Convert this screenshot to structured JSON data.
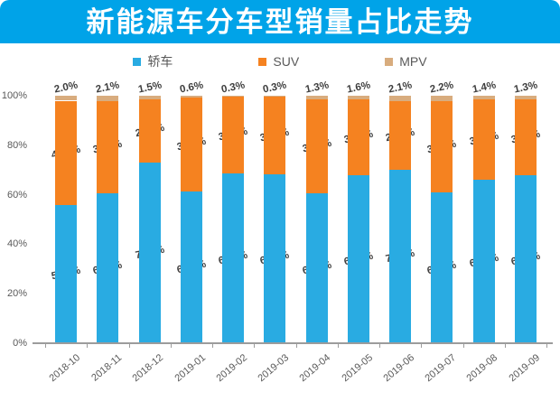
{
  "header": {
    "title": "新能源车分车型销量占比走势"
  },
  "legend": [
    {
      "label": "轿车",
      "color": "#29ABE2"
    },
    {
      "label": "SUV",
      "color": "#F58220"
    },
    {
      "label": "MPV",
      "color": "#D8AC7E"
    }
  ],
  "chart_data": {
    "type": "bar",
    "stacked": true,
    "title": "新能源车分车型销量占比走势",
    "categories": [
      "2018-10",
      "2018-11",
      "2018-12",
      "2019-01",
      "2019-02",
      "2019-03",
      "2019-04",
      "2019-05",
      "2019-06",
      "2019-07",
      "2019-08",
      "2019-09"
    ],
    "series": [
      {
        "name": "轿车",
        "color": "#29ABE2",
        "values": [
          55.9,
          60.5,
          73.0,
          61.5,
          68.6,
          68.3,
          60.5,
          67.8,
          70.1,
          60.9,
          66.2,
          67.9
        ]
      },
      {
        "name": "SUV",
        "color": "#F58220",
        "values": [
          42.1,
          37.4,
          25.6,
          37.9,
          31.2,
          31.5,
          38.2,
          30.6,
          27.7,
          36.9,
          32.4,
          30.8
        ]
      },
      {
        "name": "MPV",
        "color": "#D8AC7E",
        "values": [
          2.0,
          2.1,
          1.5,
          0.6,
          0.3,
          0.3,
          1.3,
          1.6,
          2.1,
          2.2,
          1.4,
          1.3
        ]
      }
    ],
    "xlabel": "",
    "ylabel": "",
    "ylim": [
      0,
      100
    ],
    "yticks": [
      "0%",
      "20%",
      "40%",
      "60%",
      "80%",
      "100%"
    ],
    "value_suffix": "%",
    "grid": false,
    "legend_position": "top"
  },
  "colors": {
    "banner": "#00A3E8",
    "axis_line": "#9c9c9c",
    "axis_text": "#595959",
    "data_label": "#3d3d3d"
  }
}
